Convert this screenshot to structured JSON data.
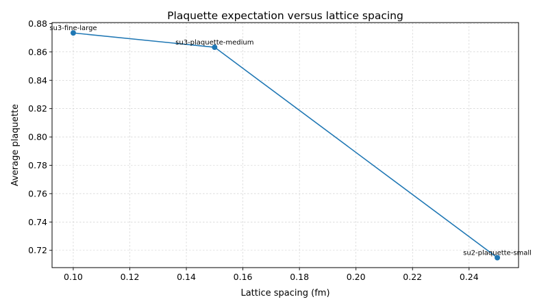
{
  "chart_data": {
    "type": "line",
    "title": "Plaquette expectation versus lattice spacing",
    "xlabel": "Lattice spacing (fm)",
    "ylabel": "Average plaquette",
    "xlim": [
      0.0925,
      0.2575
    ],
    "ylim": [
      0.7078,
      0.8807
    ],
    "xticks": [
      0.1,
      0.12,
      0.14,
      0.16,
      0.18,
      0.2,
      0.22,
      0.24
    ],
    "xtick_labels": [
      "0.10",
      "0.12",
      "0.14",
      "0.16",
      "0.18",
      "0.20",
      "0.22",
      "0.24"
    ],
    "yticks": [
      0.72,
      0.74,
      0.76,
      0.78,
      0.8,
      0.82,
      0.84,
      0.86,
      0.88
    ],
    "ytick_labels": [
      "0.72",
      "0.74",
      "0.76",
      "0.78",
      "0.80",
      "0.82",
      "0.84",
      "0.86",
      "0.88"
    ],
    "grid": true,
    "line_color": "#1f77b4",
    "points": [
      {
        "x": 0.1,
        "y": 0.8734,
        "label": "su3-fine-large"
      },
      {
        "x": 0.15,
        "y": 0.8633,
        "label": "su3-plaquette-medium"
      },
      {
        "x": 0.25,
        "y": 0.7148,
        "label": "su2-plaquette-small"
      }
    ]
  }
}
